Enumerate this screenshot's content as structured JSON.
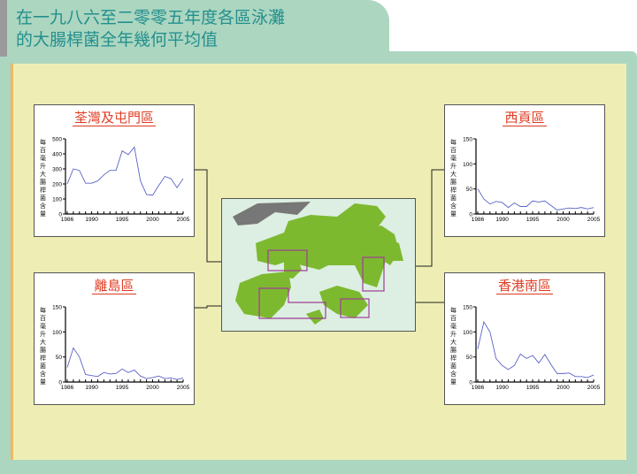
{
  "title": {
    "line1": "在一九八六至二零零五年度各區泳灘",
    "line2": "的大腸桿菌全年幾何平均值"
  },
  "colors": {
    "line": "#5a63c8",
    "title_red": "#e03a20",
    "land": "#7db92f",
    "mainland": "#777777",
    "highlight_box": "#a03c96",
    "header_text": "#23908e"
  },
  "map": {
    "regions": [
      "Tsuen Wan & Tuen Mun",
      "Sai Kung",
      "Islands",
      "Southern"
    ]
  },
  "chart_data": [
    {
      "type": "line",
      "title": "荃灣及屯門區",
      "ylabel": "每百毫升大腸桿菌含量",
      "ylim": [
        0,
        500
      ],
      "yticks": [
        0,
        100,
        200,
        300,
        400,
        500
      ],
      "xticks": [
        1986,
        1990,
        1995,
        2000,
        2005
      ],
      "x": [
        1986,
        1987,
        1988,
        1989,
        1990,
        1991,
        1992,
        1993,
        1994,
        1995,
        1996,
        1997,
        1998,
        1999,
        2000,
        2001,
        2002,
        2003,
        2004,
        2005
      ],
      "values": [
        200,
        300,
        290,
        205,
        205,
        220,
        260,
        290,
        290,
        420,
        395,
        445,
        220,
        130,
        125,
        190,
        250,
        235,
        175,
        235
      ]
    },
    {
      "type": "line",
      "title": "西貢區",
      "ylabel": "每百毫升大腸桿菌含量",
      "ylim": [
        0,
        150
      ],
      "yticks": [
        0,
        50,
        100,
        150
      ],
      "xticks": [
        1986,
        1990,
        1995,
        2000,
        2005
      ],
      "x": [
        1986,
        1987,
        1988,
        1989,
        1990,
        1991,
        1992,
        1993,
        1994,
        1995,
        1996,
        1997,
        1998,
        1999,
        2000,
        2001,
        2002,
        2003,
        2004,
        2005
      ],
      "values": [
        50,
        30,
        20,
        25,
        23,
        13,
        22,
        15,
        15,
        26,
        24,
        26,
        17,
        8,
        10,
        12,
        11,
        13,
        10,
        13
      ]
    },
    {
      "type": "line",
      "title": "離島區",
      "ylabel": "每百毫升大腸桿菌含量",
      "ylim": [
        0,
        150
      ],
      "yticks": [
        0,
        50,
        100,
        150
      ],
      "xticks": [
        1986,
        1990,
        1995,
        2000,
        2005
      ],
      "x": [
        1986,
        1987,
        1988,
        1989,
        1990,
        1991,
        1992,
        1993,
        1994,
        1995,
        1996,
        1997,
        1998,
        1999,
        2000,
        2001,
        2002,
        2003,
        2004,
        2005
      ],
      "values": [
        29,
        68,
        50,
        15,
        13,
        11,
        19,
        16,
        17,
        26,
        19,
        24,
        12,
        7,
        9,
        12,
        7,
        8,
        5,
        8
      ]
    },
    {
      "type": "line",
      "title": "香港南區",
      "ylabel": "每百毫升大腸桿菌含量",
      "ylim": [
        0,
        150
      ],
      "yticks": [
        0,
        50,
        100,
        150
      ],
      "xticks": [
        1986,
        1990,
        1995,
        2000,
        2005
      ],
      "x": [
        1986,
        1987,
        1988,
        1989,
        1990,
        1991,
        1992,
        1993,
        1994,
        1995,
        1996,
        1997,
        1998,
        1999,
        2000,
        2001,
        2002,
        2003,
        2004,
        2005
      ],
      "values": [
        66,
        120,
        100,
        47,
        33,
        25,
        33,
        56,
        47,
        53,
        38,
        55,
        35,
        17,
        17,
        18,
        11,
        11,
        9,
        14
      ]
    }
  ]
}
